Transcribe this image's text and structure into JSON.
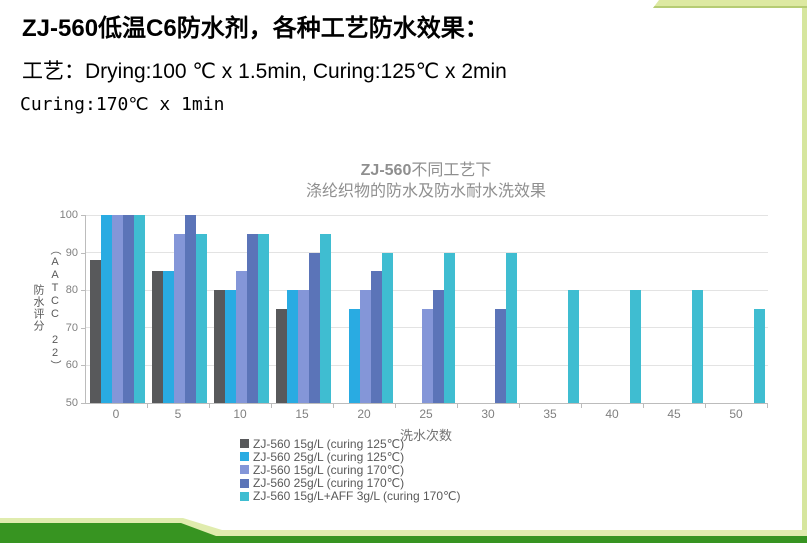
{
  "slide": {
    "title": "ZJ-560低温C6防水剂，各种工艺防水效果：",
    "process_line1": "工艺：Drying:100 ℃ x 1.5min, Curing:125℃ x 2min",
    "process_line2": "Curing:170℃ x 1min"
  },
  "theme": {
    "deco_green_dark": "#379421",
    "deco_green_light": "#e0ecae",
    "deco_top_bar": "#dde9a2",
    "axis_color": "#bcbcbc",
    "grid_color": "#e3e3e3",
    "chart_text_color": "#8f8f8f"
  },
  "chart_data": {
    "type": "bar",
    "title_bold": "ZJ-560",
    "title_rest": "不同工艺下",
    "title_line2": "涤纶织物的防水及防水耐水洗效果",
    "xlabel": "洗水次数",
    "ylabel": "防水评分（AATCC 22）",
    "ylabel_col1": "防水评分",
    "ylabel_col2": "（AATCC 22）",
    "ylim": [
      50,
      100
    ],
    "ytick_step": 10,
    "grid": true,
    "legend_position": "bottom",
    "categories": [
      "0",
      "5",
      "10",
      "15",
      "20",
      "25",
      "30",
      "35",
      "40",
      "45",
      "50"
    ],
    "series": [
      {
        "name": "ZJ-560  15g/L (curing 125℃)",
        "color": "#58595b",
        "values": [
          88,
          85,
          80,
          75,
          null,
          null,
          null,
          null,
          null,
          null,
          null
        ]
      },
      {
        "name": "ZJ-560  25g/L (curing 125℃)",
        "color": "#29abe2",
        "values": [
          100,
          85,
          80,
          80,
          75,
          null,
          null,
          null,
          null,
          null,
          null
        ]
      },
      {
        "name": "ZJ-560  15g/L (curing 170℃)",
        "color": "#8496d8",
        "values": [
          100,
          95,
          85,
          80,
          80,
          75,
          null,
          null,
          null,
          null,
          null
        ]
      },
      {
        "name": "ZJ-560  25g/L (curing 170℃)",
        "color": "#5b74b8",
        "values": [
          100,
          100,
          95,
          90,
          85,
          80,
          75,
          null,
          null,
          null,
          null
        ]
      },
      {
        "name": "ZJ-560  15g/L+AFF 3g/L  (curing 170℃)",
        "color": "#3fbdd1",
        "values": [
          100,
          95,
          95,
          95,
          90,
          90,
          90,
          80,
          80,
          80,
          75
        ]
      }
    ]
  }
}
